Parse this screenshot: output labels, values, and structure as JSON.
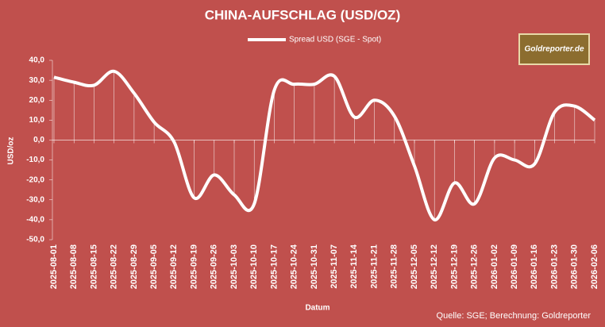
{
  "chart_data": {
    "type": "line",
    "title": "CHINA-AUFSCHLAG (USD/OZ)",
    "x_label": "Datum",
    "y_label": "USD/oz",
    "source": "Quelle: SGE; Berechnung: Goldreporter",
    "logo": "Goldreporter.de",
    "categories": [
      "2025-08-01",
      "2025-08-08",
      "2025-08-15",
      "2025-08-22",
      "2025-08-29",
      "2025-09-05",
      "2025-09-12",
      "2025-09-19",
      "2025-09-26",
      "2025-10-03",
      "2025-10-10",
      "2025-10-17",
      "2025-10-24",
      "2025-10-31",
      "2025-11-07",
      "2025-11-14",
      "2025-11-21",
      "2025-11-28",
      "2025-12-05",
      "2025-12-12",
      "2025-12-19",
      "2025-12-26",
      "2026-01-02",
      "2026-01-09",
      "2026-01-16",
      "2026-01-23",
      "2026-01-30",
      "2026-02-06"
    ],
    "series": [
      {
        "name": "Spread USD (SGE - Spot)",
        "color": "#ffffff",
        "values": [
          31.5,
          29,
          27.5,
          34.5,
          23.5,
          9,
          -1,
          -29,
          -17.5,
          -27.5,
          -32,
          25,
          28,
          28,
          32,
          11.5,
          20,
          12,
          -13,
          -40,
          -21.5,
          -32,
          -9,
          -10,
          -12,
          14,
          17,
          10
        ]
      }
    ],
    "ylim": [
      -50,
      40
    ],
    "yticks": [
      {
        "value": -50,
        "label": "-50,0"
      },
      {
        "value": -40,
        "label": "-40,0"
      },
      {
        "value": -30,
        "label": "-30,0"
      },
      {
        "value": -20,
        "label": "-20,0"
      },
      {
        "value": -10,
        "label": "-10,0"
      },
      {
        "value": 0,
        "label": "0,0"
      },
      {
        "value": 10,
        "label": "10,0"
      },
      {
        "value": 20,
        "label": "20,0"
      },
      {
        "value": 30,
        "label": "30,0"
      },
      {
        "value": 40,
        "label": "40,0"
      }
    ],
    "drop_lines": true
  }
}
